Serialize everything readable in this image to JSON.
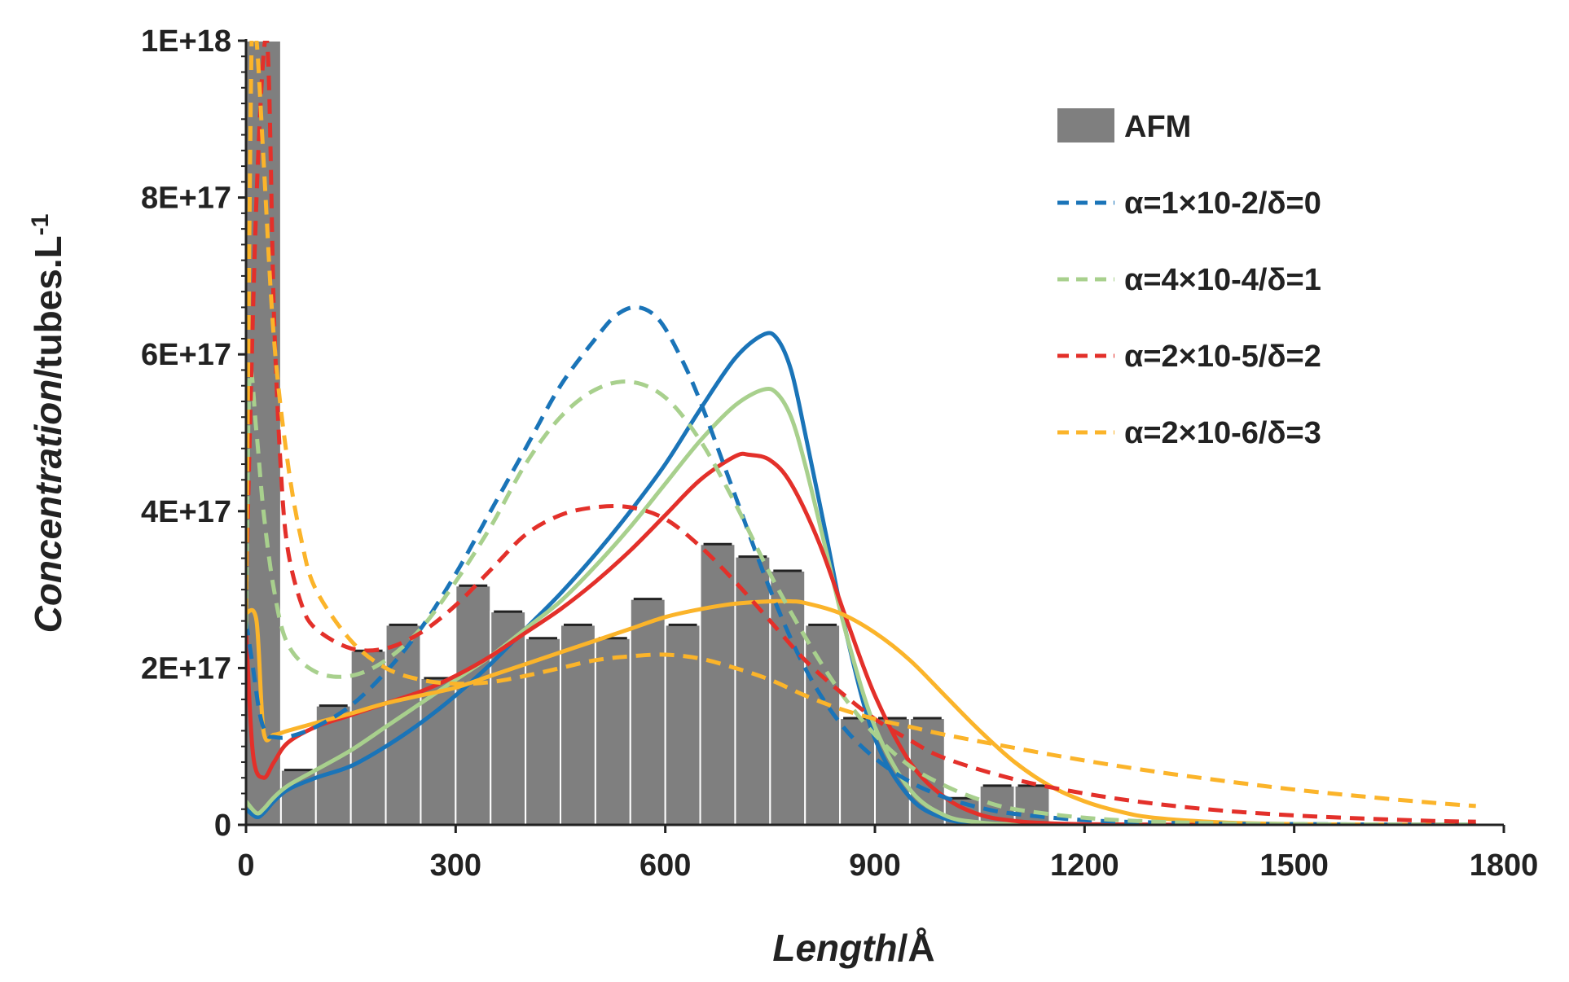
{
  "chart_data": {
    "type": "bar+line",
    "title": "",
    "xlabel": {
      "italic": "Length",
      "rest": "/Å"
    },
    "ylabel": {
      "italic": "Concentration",
      "rest": "/tubes.L",
      "sup": "-1"
    },
    "xlim": [
      0,
      1800
    ],
    "ylim": [
      0,
      1e+18
    ],
    "x_ticks": [
      0,
      300,
      600,
      900,
      1200,
      1500,
      1800
    ],
    "x_tick_labels": [
      "0",
      "300",
      "600",
      "900",
      "1200",
      "1500",
      "1800"
    ],
    "y_ticks": [
      0,
      2e+17,
      4e+17,
      6e+17,
      8e+17,
      1e+18
    ],
    "y_tick_labels": [
      "0",
      "2E+17",
      "4E+17",
      "6E+17",
      "8E+17",
      "1E+18"
    ],
    "legend_position": "top-right",
    "colors": {
      "bar": "#7f7f7f",
      "bar_edge": "#ffffff",
      "axis": "#222222",
      "blue": "#1a74b8",
      "green": "#a8d08d",
      "red": "#e3302a",
      "orange": "#fbb42a"
    },
    "bars": {
      "name": "AFM",
      "bin_width": 50,
      "bins": [
        {
          "start": 0,
          "value": 1e+18
        },
        {
          "start": 50,
          "value": 7e+16
        },
        {
          "start": 100,
          "value": 1.52e+17
        },
        {
          "start": 150,
          "value": 2.22e+17
        },
        {
          "start": 200,
          "value": 2.55e+17
        },
        {
          "start": 250,
          "value": 1.87e+17
        },
        {
          "start": 300,
          "value": 3.05e+17
        },
        {
          "start": 350,
          "value": 2.72e+17
        },
        {
          "start": 400,
          "value": 2.38e+17
        },
        {
          "start": 450,
          "value": 2.55e+17
        },
        {
          "start": 500,
          "value": 2.38e+17
        },
        {
          "start": 550,
          "value": 2.88e+17
        },
        {
          "start": 600,
          "value": 2.55e+17
        },
        {
          "start": 650,
          "value": 3.58e+17
        },
        {
          "start": 700,
          "value": 3.42e+17
        },
        {
          "start": 750,
          "value": 3.24e+17
        },
        {
          "start": 800,
          "value": 2.55e+17
        },
        {
          "start": 850,
          "value": 1.36e+17
        },
        {
          "start": 900,
          "value": 1.36e+17
        },
        {
          "start": 950,
          "value": 1.36e+17
        },
        {
          "start": 1000,
          "value": 3.4e+16
        },
        {
          "start": 1050,
          "value": 5e+16
        },
        {
          "start": 1100,
          "value": 5e+16
        }
      ]
    },
    "series": [
      {
        "name": "α=1×10-2/δ=0",
        "style": "dashed",
        "color": "#1a74b8",
        "x": [
          0,
          10,
          20,
          30,
          40,
          60,
          100,
          150,
          200,
          250,
          300,
          350,
          400,
          450,
          500,
          530,
          560,
          590,
          620,
          650,
          700,
          750,
          800,
          850,
          900,
          950,
          1000,
          1050,
          1100,
          1200,
          1300,
          1400,
          1500,
          1600,
          1700,
          1760
        ],
        "y": [
          2.6e+17,
          2e+17,
          1.4e+17,
          1.15e+17,
          1.12e+17,
          1.12e+17,
          1.25e+17,
          1.52e+17,
          1.95e+17,
          2.5e+17,
          3.2e+17,
          4e+17,
          4.8e+17,
          5.6e+17,
          6.2e+17,
          6.5e+17,
          6.6e+17,
          6.45e+17,
          6e+17,
          5.4e+17,
          4.2e+17,
          3e+17,
          2e+17,
          1.3e+17,
          8.5e+16,
          5.5e+16,
          3.5e+16,
          2.2e+16,
          1.4e+16,
          6000000000000000.0,
          3000000000000000.0,
          1500000000000000.0,
          1000000000000000.0,
          500000000000000.0,
          300000000000000.0,
          200000000000000.0
        ]
      },
      {
        "name": "α=4×10-4/δ=1",
        "style": "dashed",
        "color": "#a8d08d",
        "x": [
          0,
          5,
          15,
          25,
          40,
          60,
          100,
          150,
          200,
          250,
          300,
          350,
          400,
          450,
          500,
          550,
          600,
          650,
          700,
          750,
          800,
          850,
          900,
          950,
          1000,
          1050,
          1100,
          1200,
          1300,
          1400,
          1500,
          1600,
          1700,
          1760
        ],
        "y": [
          2.5e+17,
          5.7e+17,
          5e+17,
          4e+17,
          3e+17,
          2.3e+17,
          1.95e+17,
          1.9e+17,
          2.1e+17,
          2.5e+17,
          3.1e+17,
          3.8e+17,
          4.6e+17,
          5.2e+17,
          5.55e+17,
          5.65e+17,
          5.45e+17,
          4.9e+17,
          4.1e+17,
          3.2e+17,
          2.4e+17,
          1.7e+17,
          1.15e+17,
          7.5e+16,
          5e+16,
          3.2e+16,
          2e+16,
          9000000000000000.0,
          4000000000000000.0,
          2000000000000000.0,
          1000000000000000.0,
          500000000000000.0,
          300000000000000.0,
          200000000000000.0
        ]
      },
      {
        "name": "α=2×10-5/δ=2",
        "style": "dashed",
        "color": "#e3302a",
        "x": [
          0,
          15,
          30,
          40,
          50,
          60,
          80,
          100,
          150,
          200,
          250,
          300,
          350,
          400,
          450,
          500,
          550,
          600,
          650,
          700,
          750,
          800,
          850,
          900,
          950,
          1000,
          1100,
          1200,
          1300,
          1400,
          1500,
          1600,
          1700,
          1760
        ],
        "y": [
          3e+17,
          8e+17,
          1e+18,
          6.5e+17,
          4.5e+17,
          3.5e+17,
          2.8e+17,
          2.5e+17,
          2.25e+17,
          2.25e+17,
          2.45e+17,
          2.8e+17,
          3.25e+17,
          3.7e+17,
          3.95e+17,
          4.05e+17,
          4.05e+17,
          3.9e+17,
          3.55e+17,
          3.1e+17,
          2.6e+17,
          2.1e+17,
          1.7e+17,
          1.35e+17,
          1.08e+17,
          8.5e+16,
          5.8e+16,
          4e+16,
          2.7e+16,
          1.8e+16,
          1.2e+16,
          8000000000000000.0,
          5000000000000000.0,
          4000000000000000.0
        ]
      },
      {
        "name": "α=2×10-6/δ=3",
        "style": "dashed",
        "color": "#fbb42a",
        "x": [
          0,
          8,
          15,
          25,
          40,
          60,
          80,
          100,
          150,
          200,
          250,
          300,
          350,
          400,
          450,
          500,
          550,
          600,
          650,
          700,
          750,
          800,
          850,
          900,
          950,
          1000,
          1100,
          1200,
          1300,
          1400,
          1500,
          1600,
          1700,
          1760
        ],
        "y": [
          2.7e+17,
          1e+18,
          1e+18,
          8.5e+17,
          6.2e+17,
          4.6e+17,
          3.6e+17,
          3e+17,
          2.35e+17,
          2e+17,
          1.85e+17,
          1.8e+17,
          1.82e+17,
          1.9e+17,
          2e+17,
          2.1e+17,
          2.15e+17,
          2.17e+17,
          2.12e+17,
          2e+17,
          1.85e+17,
          1.65e+17,
          1.48e+17,
          1.35e+17,
          1.25e+17,
          1.15e+17,
          9.8e+16,
          8.2e+16,
          6.8e+16,
          5.6e+16,
          4.5e+16,
          3.6e+16,
          2.8e+16,
          2.4e+16
        ]
      },
      {
        "name": "blue solid",
        "style": "solid",
        "color": "#1a74b8",
        "legend": false,
        "x": [
          0,
          15,
          25,
          40,
          60,
          100,
          150,
          200,
          250,
          300,
          350,
          400,
          450,
          500,
          550,
          600,
          650,
          700,
          740,
          760,
          780,
          800,
          830,
          860,
          900,
          950,
          1000,
          1050,
          1100,
          1200,
          1300,
          1500,
          1700,
          1760
        ],
        "y": [
          2e+16,
          1e+16,
          1.5e+16,
          3e+16,
          4.5e+16,
          6e+16,
          7.5e+16,
          1e+17,
          1.3e+17,
          1.65e+17,
          2.05e+17,
          2.5e+17,
          2.95e+17,
          3.45e+17,
          4e+17,
          4.6e+17,
          5.3e+17,
          5.95e+17,
          6.25e+17,
          6.2e+17,
          5.8e+17,
          5e+17,
          3.7e+17,
          2.4e+17,
          1.1e+17,
          3.5e+16,
          8000000000000000.0,
          2000000000000000.0,
          500000000000000.0,
          100000000000000.0,
          0,
          0,
          0,
          0
        ]
      },
      {
        "name": "green solid",
        "style": "solid",
        "color": "#a8d08d",
        "legend": false,
        "x": [
          0,
          15,
          25,
          40,
          60,
          100,
          150,
          200,
          250,
          300,
          350,
          400,
          450,
          500,
          550,
          600,
          650,
          700,
          740,
          760,
          780,
          800,
          830,
          860,
          900,
          950,
          1000,
          1050,
          1100,
          1200,
          1300,
          1500,
          1700,
          1760
        ],
        "y": [
          3e+16,
          1.5e+16,
          2e+16,
          3.5e+16,
          5e+16,
          7e+16,
          9.5e+16,
          1.25e+17,
          1.55e+17,
          1.85e+17,
          2.15e+17,
          2.5e+17,
          2.85e+17,
          3.3e+17,
          3.8e+17,
          4.35e+17,
          4.9e+17,
          5.35e+17,
          5.55e+17,
          5.5e+17,
          5.2e+17,
          4.6e+17,
          3.5e+17,
          2.4e+17,
          1.25e+17,
          4.5e+16,
          1.2e+16,
          3000000000000000.0,
          800000000000000.0,
          100000000000000.0,
          0,
          0,
          0,
          0
        ]
      },
      {
        "name": "red solid",
        "style": "solid",
        "color": "#e3302a",
        "legend": false,
        "x": [
          0,
          10,
          25,
          40,
          60,
          100,
          150,
          200,
          250,
          300,
          350,
          400,
          450,
          500,
          550,
          600,
          650,
          700,
          720,
          750,
          780,
          820,
          860,
          900,
          950,
          1000,
          1050,
          1100,
          1150,
          1200,
          1300,
          1500,
          1700,
          1760
        ],
        "y": [
          2.5e+17,
          9e+16,
          6e+16,
          8e+16,
          1.05e+17,
          1.25e+17,
          1.4e+17,
          1.55e+17,
          1.7e+17,
          1.9e+17,
          2.15e+17,
          2.45e+17,
          2.75e+17,
          3.1e+17,
          3.5e+17,
          3.95e+17,
          4.4e+17,
          4.7e+17,
          4.72e+17,
          4.65e+17,
          4.35e+17,
          3.6e+17,
          2.6e+17,
          1.65e+17,
          8e+16,
          3.5e+16,
          1.3e+16,
          5000000000000000.0,
          2000000000000000.0,
          800000000000000.0,
          200000000000000.0,
          0,
          0,
          0
        ]
      },
      {
        "name": "orange solid",
        "style": "solid",
        "color": "#fbb42a",
        "legend": false,
        "x": [
          0,
          15,
          25,
          40,
          60,
          100,
          150,
          200,
          250,
          300,
          350,
          400,
          450,
          500,
          550,
          600,
          650,
          700,
          750,
          780,
          800,
          850,
          900,
          950,
          1000,
          1050,
          1100,
          1150,
          1200,
          1250,
          1300,
          1400,
          1500,
          1600,
          1700,
          1760
        ],
        "y": [
          2.7e+17,
          2.6e+17,
          1.2e+17,
          1.15e+17,
          1.2e+17,
          1.3e+17,
          1.42e+17,
          1.55e+17,
          1.65e+17,
          1.75e+17,
          1.9e+17,
          2.05e+17,
          2.2e+17,
          2.35e+17,
          2.5e+17,
          2.65e+17,
          2.75e+17,
          2.82e+17,
          2.85e+17,
          2.85e+17,
          2.83e+17,
          2.7e+17,
          2.45e+17,
          2.1e+17,
          1.65e+17,
          1.2e+17,
          8e+16,
          5e+16,
          3e+16,
          1.7e+16,
          9000000000000000.0,
          3000000000000000.0,
          1000000000000000.0,
          400000000000000.0,
          100000000000000.0,
          0
        ]
      }
    ],
    "legend": [
      {
        "label": "AFM",
        "kind": "bar",
        "color": "#7f7f7f"
      },
      {
        "label": "α=1×10-2/δ=0",
        "kind": "dashed",
        "color": "#1a74b8"
      },
      {
        "label": "α=4×10-4/δ=1",
        "kind": "dashed",
        "color": "#a8d08d"
      },
      {
        "label": "α=2×10-5/δ=2",
        "kind": "dashed",
        "color": "#e3302a"
      },
      {
        "label": "α=2×10-6/δ=3",
        "kind": "dashed",
        "color": "#fbb42a"
      }
    ]
  }
}
